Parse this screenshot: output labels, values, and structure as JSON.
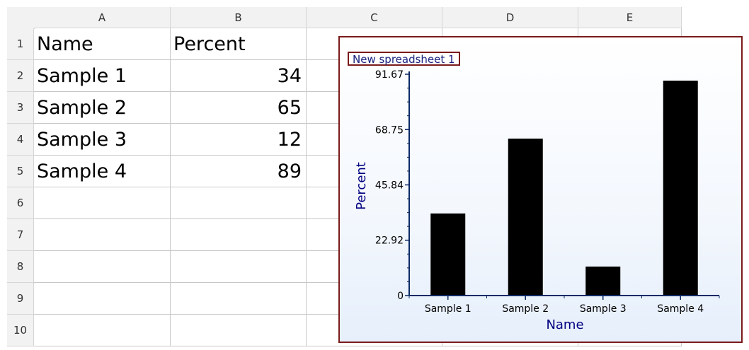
{
  "columns": [
    "A",
    "B",
    "C",
    "D",
    "E"
  ],
  "rows": [
    "1",
    "2",
    "3",
    "4",
    "5",
    "6",
    "7",
    "8",
    "9",
    "10"
  ],
  "cells": {
    "a1": "Name",
    "b1": "Percent",
    "a2": "Sample 1",
    "b2": "34",
    "a3": "Sample 2",
    "b3": "65",
    "a4": "Sample 3",
    "b4": "12",
    "a5": "Sample 4",
    "b5": "89"
  },
  "colors": {
    "bar": "#000000",
    "axis": "#0d2a66",
    "axis_label": "#000080",
    "frame": "#7a1a1a"
  },
  "chart_data": {
    "type": "bar",
    "title": "New spreadsheet 1",
    "xlabel": "Name",
    "ylabel": "Percent",
    "categories": [
      "Sample 1",
      "Sample 2",
      "Sample 3",
      "Sample 4"
    ],
    "values": [
      34,
      65,
      12,
      89
    ],
    "ylim": [
      0,
      91.67
    ],
    "yticks": [
      "0",
      "22.92",
      "45.84",
      "68.75",
      "91.67"
    ],
    "grid": false
  }
}
